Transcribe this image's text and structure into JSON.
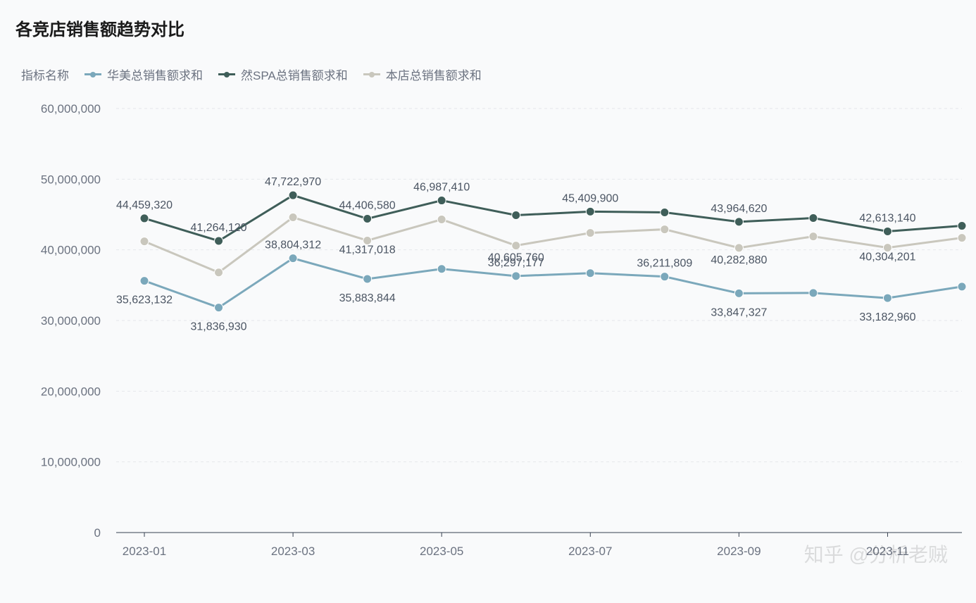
{
  "title": "各竞店销售额趋势对比",
  "legend_title": "指标名称",
  "chart": {
    "type": "line",
    "background_color": "#f9fafb",
    "grid_color": "#e5e7eb",
    "axis_color": "#374151",
    "tick_color": "#6b7280",
    "tick_fontsize": 17,
    "label_fontsize": 16,
    "title_fontsize": 24,
    "line_width": 3,
    "marker_size": 6,
    "marker_style": "circle",
    "ylim": [
      0,
      60000000
    ],
    "ytick_step": 10000000,
    "ytick_labels": [
      "0",
      "10,000,000",
      "20,000,000",
      "30,000,000",
      "40,000,000",
      "50,000,000",
      "60,000,000"
    ],
    "xticks_shown": [
      "2023-01",
      "2023-03",
      "2023-05",
      "2023-07",
      "2023-09",
      "2023-11"
    ],
    "x_categories": [
      "2023-01",
      "2023-02",
      "2023-03",
      "2023-04",
      "2023-05",
      "2023-06",
      "2023-07",
      "2023-08",
      "2023-09",
      "2023-10",
      "2023-11",
      "2023-12"
    ],
    "series": [
      {
        "name": "华美总销售额求和",
        "color": "#7ba8bb",
        "values": [
          35623132,
          31836930,
          38804312,
          35883844,
          37300000,
          36297177,
          36700000,
          36211809,
          33847327,
          33900000,
          33182960,
          34800000
        ],
        "point_labels": [
          "35,623,132",
          "31,836,930",
          "38,804,312",
          "35,883,844",
          "",
          "36,297,177",
          "",
          "36,211,809",
          "33,847,327",
          "",
          "33,182,960",
          ""
        ],
        "label_dy": [
          32,
          32,
          -14,
          32,
          0,
          -14,
          0,
          -14,
          32,
          0,
          32,
          0
        ]
      },
      {
        "name": "然SPA总销售额求和",
        "color": "#3f5e59",
        "values": [
          44459320,
          41264120,
          47722970,
          44406580,
          46987410,
          44900000,
          45409900,
          45300000,
          43964620,
          44500000,
          42613140,
          43400000
        ],
        "point_labels": [
          "44,459,320",
          "41,264,120",
          "47,722,970",
          "44,406,580",
          "46,987,410",
          "",
          "45,409,900",
          "",
          "43,964,620",
          "",
          "42,613,140",
          ""
        ],
        "label_dy": [
          -14,
          -14,
          -14,
          -14,
          -14,
          0,
          -14,
          0,
          -14,
          0,
          -14,
          0
        ]
      },
      {
        "name": "本店总销售额求和",
        "color": "#c9c7bd",
        "values": [
          41200000,
          36800000,
          44600000,
          41317018,
          44300000,
          40605760,
          42400000,
          42900000,
          40282880,
          41900000,
          40304201,
          41700000
        ],
        "point_labels": [
          "",
          "",
          "",
          "41,317,018",
          "",
          "40,605,760",
          "",
          "",
          "40,282,880",
          "",
          "40,304,201",
          ""
        ],
        "label_dy": [
          0,
          0,
          0,
          18,
          0,
          22,
          0,
          0,
          22,
          0,
          18,
          0
        ]
      }
    ]
  },
  "watermark": "知乎 @分析老贼"
}
